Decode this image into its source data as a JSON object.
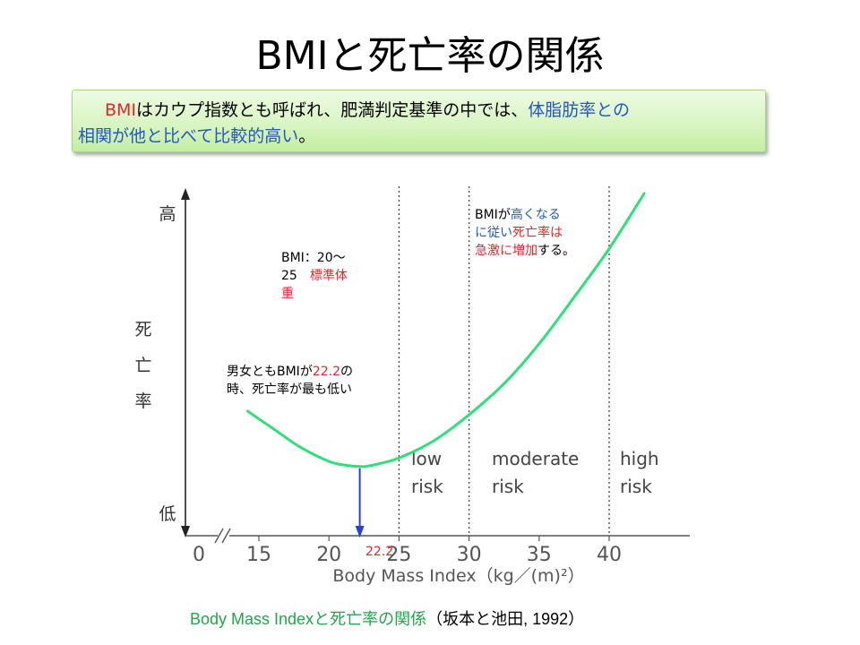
{
  "title": {
    "prefix": "BMI",
    "rest": "と死亡率の関係"
  },
  "summary": {
    "line1": [
      {
        "text": "BMI",
        "color": "red"
      },
      {
        "text": "はカウプ指数とも呼ばれ、肥満判定基準の中では、",
        "color": "black"
      },
      {
        "text": "体脂肪率との",
        "color": "blue"
      }
    ],
    "line2": [
      {
        "text": "相関が他と比べて比較的高い",
        "color": "blue"
      },
      {
        "text": "。",
        "color": "black"
      }
    ]
  },
  "chart_data": {
    "type": "line",
    "xlabel": "Body Mass Index（kg／(m)²）",
    "ylabel": "死亡率",
    "y_high_label": "高",
    "y_low_label": "低",
    "x_tick_labels": [
      "0",
      "15",
      "20",
      "25",
      "30",
      "35",
      "40"
    ],
    "x_ticks": [
      0,
      15,
      20,
      25,
      30,
      35,
      40
    ],
    "x_axis_break": true,
    "y_axis_quantitative": false,
    "vertical_guides": [
      25,
      30,
      40
    ],
    "zones": [
      {
        "label_line1": "low",
        "label_line2": "risk",
        "from": 25,
        "to": 30
      },
      {
        "label_line1": "moderate",
        "label_line2": "risk",
        "from": 30,
        "to": 40
      },
      {
        "label_line1": "high",
        "label_line2": "risk",
        "from": 40,
        "to": null
      }
    ],
    "series": [
      {
        "color": "#2fe07a",
        "x": [
          14.2,
          16,
          18,
          20,
          21,
          22.2,
          23,
          25,
          27.5,
          30,
          32.5,
          35,
          37.5,
          40,
          42.5
        ],
        "y": [
          0.36,
          0.31,
          0.255,
          0.215,
          0.205,
          0.2,
          0.203,
          0.225,
          0.275,
          0.35,
          0.44,
          0.555,
          0.69,
          0.83,
          0.99
        ]
      }
    ],
    "minimum_marker": {
      "x": 22.2,
      "label": "22.2",
      "color": "#2540d8"
    },
    "annotations": [
      {
        "segments": [
          [
            {
              "text": "BMI：20〜",
              "color": "black"
            }
          ],
          [
            {
              "text": "25　",
              "color": "black"
            },
            {
              "text": "標準体",
              "color": "red"
            }
          ],
          [
            {
              "text": "重",
              "color": "red"
            }
          ]
        ]
      },
      {
        "segments": [
          [
            {
              "text": "男女とも",
              "color": "black"
            },
            {
              "text": "BMI",
              "color": "black"
            },
            {
              "text": "が",
              "color": "black"
            },
            {
              "text": "22.2",
              "color": "red"
            },
            {
              "text": "の",
              "color": "black"
            }
          ],
          [
            {
              "text": "時、死亡率が最も低い",
              "color": "black"
            }
          ]
        ]
      },
      {
        "segments": [
          [
            {
              "text": "BMIが",
              "color": "black"
            },
            {
              "text": "高くなる",
              "color": "blue"
            }
          ],
          [
            {
              "text": "に従い",
              "color": "blue"
            },
            {
              "text": "死亡率",
              "color": "red"
            },
            {
              "text": "は",
              "color": "red"
            }
          ],
          [
            {
              "text": "急激に増加",
              "color": "red"
            },
            {
              "text": "する。",
              "color": "black"
            }
          ]
        ]
      }
    ]
  },
  "caption": {
    "part1": "Body Mass Index",
    "part2": "と死亡率の関係",
    "part3": "（坂本と池田, 1992）"
  },
  "colors": {
    "red": "#e8242b",
    "blue": "#2457c5",
    "curve": "#2fe07a",
    "marker": "#2540d8",
    "caption_green": "#21a64a",
    "box_fill": "#d9f5c2"
  }
}
